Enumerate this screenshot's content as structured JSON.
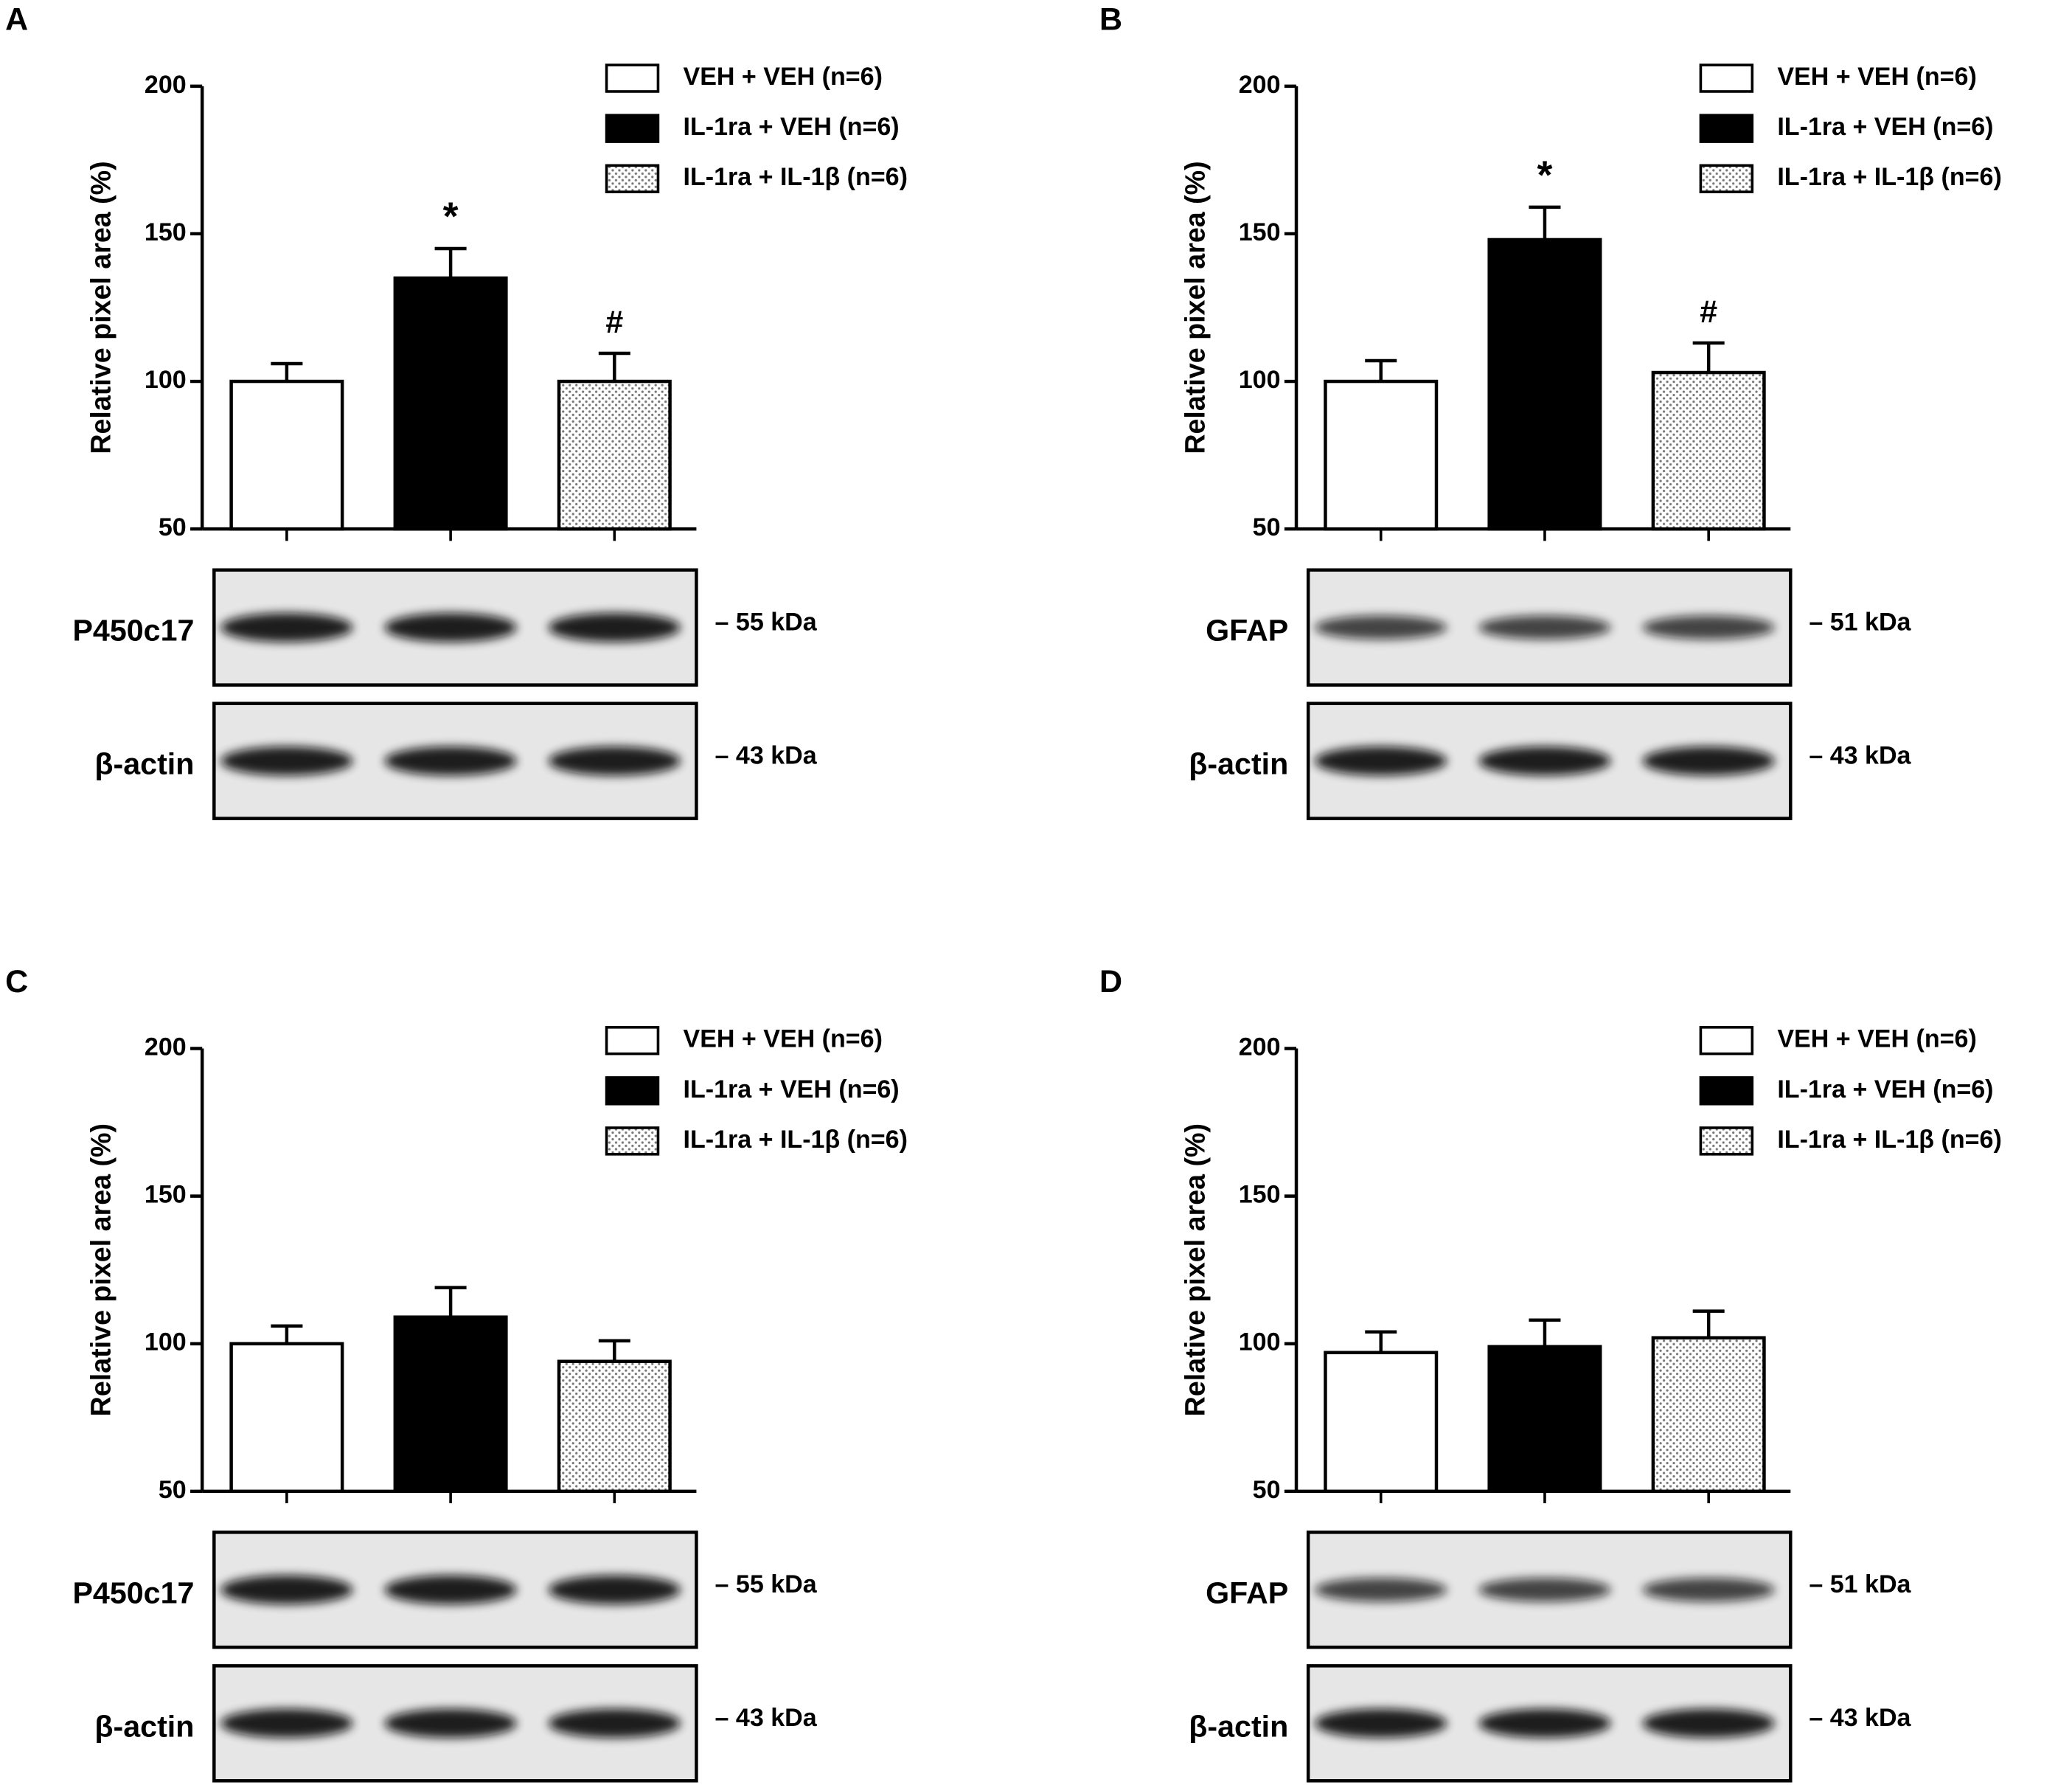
{
  "chart_data": [
    {
      "type": "bar",
      "panel_label": "A",
      "ylabel": "Relative pixel area (%)",
      "categories": [
        null
      ],
      "ylim": [
        50,
        200
      ],
      "yticks": [
        50,
        100,
        150,
        200
      ],
      "series": [
        {
          "name": "VEH + VEH (n=6)",
          "color": "#ffffff",
          "values": [
            100
          ],
          "errors": [
            6
          ]
        },
        {
          "name": "IL-1ra + VEH (n=6)",
          "color": "#000000",
          "values": [
            135
          ],
          "errors": [
            10
          ],
          "annotation": "*"
        },
        {
          "name": "IL-1ra + IL-1β (n=6)",
          "color": "#777777",
          "pattern": "dots",
          "values": [
            100
          ],
          "errors": [
            9.5
          ],
          "annotation": "#"
        }
      ],
      "blots": [
        {
          "label": "P450c17",
          "size": "– 55 kDa"
        },
        {
          "label": "β-actin",
          "size": "– 43 kDa"
        }
      ]
    },
    {
      "type": "bar",
      "panel_label": "B",
      "ylabel": "Relative pixel area (%)",
      "categories": [
        null
      ],
      "ylim": [
        50,
        200
      ],
      "yticks": [
        50,
        100,
        150,
        200
      ],
      "series": [
        {
          "name": "VEH + VEH (n=6)",
          "color": "#ffffff",
          "values": [
            100
          ],
          "errors": [
            7
          ]
        },
        {
          "name": "IL-1ra + VEH (n=6)",
          "color": "#000000",
          "values": [
            148
          ],
          "errors": [
            11
          ],
          "annotation": "*"
        },
        {
          "name": "IL-1ra + IL-1β (n=6)",
          "color": "#777777",
          "pattern": "dots",
          "values": [
            103
          ],
          "errors": [
            10
          ],
          "annotation": "#"
        }
      ],
      "blots": [
        {
          "label": "GFAP",
          "size": "– 51 kDa"
        },
        {
          "label": "β-actin",
          "size": "– 43 kDa"
        }
      ]
    },
    {
      "type": "bar",
      "panel_label": "C",
      "ylabel": "Relative pixel area (%)",
      "categories": [
        null
      ],
      "ylim": [
        50,
        200
      ],
      "yticks": [
        50,
        100,
        150,
        200
      ],
      "series": [
        {
          "name": "VEH + VEH (n=6)",
          "color": "#ffffff",
          "values": [
            100
          ],
          "errors": [
            6
          ]
        },
        {
          "name": "IL-1ra + VEH (n=6)",
          "color": "#000000",
          "values": [
            109
          ],
          "errors": [
            10
          ]
        },
        {
          "name": "IL-1ra + IL-1β (n=6)",
          "color": "#777777",
          "pattern": "dots",
          "values": [
            94
          ],
          "errors": [
            7
          ]
        }
      ],
      "blots": [
        {
          "label": "P450c17",
          "size": "– 55 kDa"
        },
        {
          "label": "β-actin",
          "size": "– 43 kDa"
        }
      ]
    },
    {
      "type": "bar",
      "panel_label": "D",
      "ylabel": "Relative pixel area (%)",
      "categories": [
        null
      ],
      "ylim": [
        50,
        200
      ],
      "yticks": [
        50,
        100,
        150,
        200
      ],
      "series": [
        {
          "name": "VEH + VEH (n=6)",
          "color": "#ffffff",
          "values": [
            97
          ],
          "errors": [
            7
          ]
        },
        {
          "name": "IL-1ra + VEH (n=6)",
          "color": "#000000",
          "values": [
            99
          ],
          "errors": [
            9
          ]
        },
        {
          "name": "IL-1ra + IL-1β (n=6)",
          "color": "#777777",
          "pattern": "dots",
          "values": [
            102
          ],
          "errors": [
            9
          ]
        }
      ],
      "blots": [
        {
          "label": "GFAP",
          "size": "– 51 kDa"
        },
        {
          "label": "β-actin",
          "size": "– 43 kDa"
        }
      ]
    }
  ]
}
